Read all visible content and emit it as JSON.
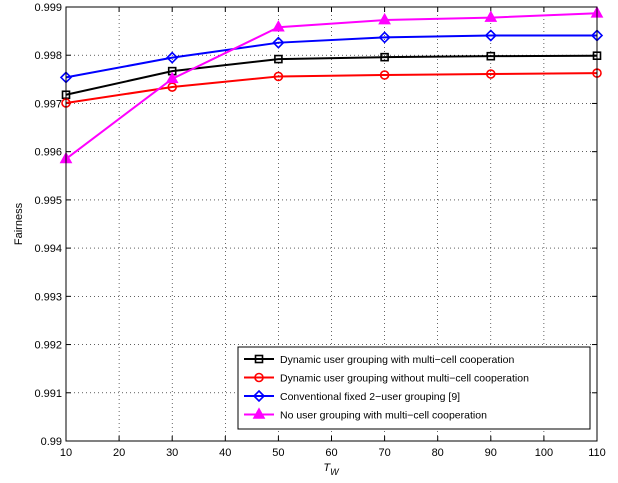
{
  "chart_data": {
    "type": "line",
    "xlabel": "T",
    "xlabel_sub": "W",
    "ylabel": "Fairness",
    "xlim": [
      10,
      110
    ],
    "ylim": [
      0.99,
      0.999
    ],
    "x": [
      10,
      30,
      50,
      70,
      90,
      110
    ],
    "xticks": [
      "10",
      "20",
      "30",
      "40",
      "50",
      "60",
      "70",
      "80",
      "90",
      "100",
      "110"
    ],
    "yticks": [
      "0.99",
      "0.991",
      "0.992",
      "0.993",
      "0.994",
      "0.995",
      "0.996",
      "0.997",
      "0.998",
      "0.999"
    ],
    "grid": true,
    "legend_position": "bottom-right",
    "series": [
      {
        "name": "Dynamic user grouping with multi−cell cooperation",
        "color": "#000000",
        "marker": "square",
        "values": [
          0.99718,
          0.99767,
          0.99792,
          0.99796,
          0.99798,
          0.99799
        ]
      },
      {
        "name": "Dynamic user grouping without multi−cell cooperation",
        "color": "#ff0000",
        "marker": "circle",
        "values": [
          0.99701,
          0.99734,
          0.99756,
          0.99759,
          0.99761,
          0.99763
        ]
      },
      {
        "name": "Conventional  fixed 2−user grouping [9]",
        "color": "#0000ff",
        "marker": "diamond",
        "values": [
          0.99754,
          0.99795,
          0.99826,
          0.99837,
          0.99841,
          0.99841
        ]
      },
      {
        "name": "No user grouping with multi−cell cooperation",
        "color": "#ff00ff",
        "marker": "triangle",
        "values": [
          0.99585,
          0.99751,
          0.99858,
          0.99873,
          0.99878,
          0.99887
        ]
      }
    ]
  }
}
